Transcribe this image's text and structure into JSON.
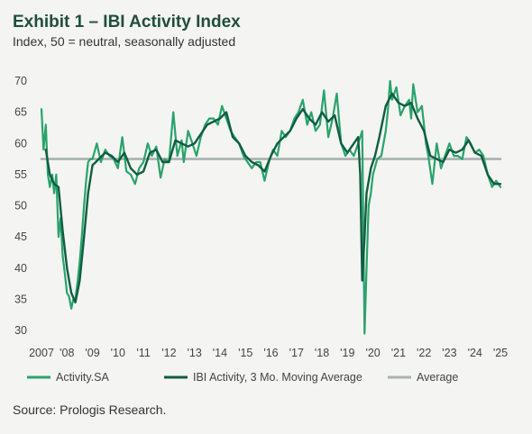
{
  "header": {
    "title": "Exhibit 1 – IBI Activity Index",
    "subtitle": "Index, 50 = neutral, seasonally adjusted"
  },
  "footer": {
    "source": "Source: Prologis Research."
  },
  "colors": {
    "activity": "#2aa36b",
    "moving_average": "#0f5d43",
    "average": "#a9b1b1"
  },
  "chart_data": {
    "type": "line",
    "title": "Exhibit 1 – IBI Activity Index",
    "subtitle": "Index, 50 = neutral, seasonally adjusted",
    "xlim": [
      2007.0,
      2025.0
    ],
    "ylim": [
      30,
      70
    ],
    "y_ticks": [
      30,
      35,
      40,
      45,
      50,
      55,
      60,
      65,
      70
    ],
    "x_tick_values": [
      2007,
      2008,
      2009,
      2010,
      2011,
      2012,
      2013,
      2014,
      2015,
      2016,
      2017,
      2018,
      2019,
      2020,
      2021,
      2022,
      2023,
      2024,
      2025
    ],
    "x_tick_labels": [
      "2007",
      "'08",
      "'09",
      "'10",
      "'11",
      "'12",
      "'13",
      "'14",
      "'15",
      "'16",
      "'17",
      "'18",
      "'19",
      "'20",
      "'21",
      "'22",
      "'23",
      "'24",
      "'25"
    ],
    "grid": false,
    "legend": {
      "position": "bottom",
      "entries": [
        "Activity.SA",
        "IBI Activity, 3 Mo. Moving Average",
        "Average"
      ]
    },
    "series": [
      {
        "name": "Activity.SA",
        "x": [
          2007.0,
          2007.08,
          2007.17,
          2007.25,
          2007.33,
          2007.42,
          2007.5,
          2007.58,
          2007.67,
          2007.75,
          2007.83,
          2007.92,
          2008.0,
          2008.08,
          2008.17,
          2008.25,
          2008.33,
          2008.42,
          2008.5,
          2008.58,
          2008.67,
          2008.75,
          2008.83,
          2008.92,
          2009.0,
          2009.17,
          2009.33,
          2009.5,
          2009.67,
          2009.83,
          2010.0,
          2010.17,
          2010.33,
          2010.5,
          2010.67,
          2010.83,
          2011.0,
          2011.17,
          2011.33,
          2011.5,
          2011.67,
          2011.83,
          2012.0,
          2012.17,
          2012.33,
          2012.5,
          2012.58,
          2012.75,
          2012.92,
          2013.08,
          2013.25,
          2013.42,
          2013.58,
          2013.75,
          2013.92,
          2014.08,
          2014.25,
          2014.42,
          2014.58,
          2014.75,
          2014.92,
          2015.08,
          2015.25,
          2015.42,
          2015.58,
          2015.75,
          2015.92,
          2016.08,
          2016.25,
          2016.42,
          2016.58,
          2016.75,
          2016.92,
          2017.08,
          2017.25,
          2017.42,
          2017.58,
          2017.75,
          2017.92,
          2018.08,
          2018.25,
          2018.42,
          2018.58,
          2018.75,
          2018.92,
          2019.08,
          2019.25,
          2019.42,
          2019.5,
          2019.58,
          2019.67,
          2019.75,
          2019.83,
          2019.92,
          2020.0,
          2020.17,
          2020.33,
          2020.5,
          2020.58,
          2020.67,
          2020.75,
          2020.92,
          2021.08,
          2021.25,
          2021.42,
          2021.5,
          2021.58,
          2021.75,
          2021.92,
          2022.08,
          2022.17,
          2022.33,
          2022.5,
          2022.67,
          2022.83,
          2023.0,
          2023.17,
          2023.33,
          2023.5,
          2023.67,
          2023.83,
          2024.0,
          2024.17,
          2024.33,
          2024.5,
          2024.67,
          2024.83,
          2025.0
        ],
        "y": [
          65.5,
          59,
          63,
          55,
          53,
          55,
          52,
          55,
          45,
          48,
          42,
          39,
          36,
          35.5,
          33.5,
          35,
          35,
          38,
          41,
          45,
          50,
          54,
          57,
          57.5,
          57.5,
          60,
          57,
          59,
          58,
          57.5,
          56,
          61,
          55.5,
          55,
          53.5,
          56,
          57,
          60,
          58,
          59.5,
          54.5,
          57.5,
          57,
          65,
          58,
          60.5,
          57,
          62,
          60,
          58,
          61,
          63,
          64,
          64,
          63,
          66,
          64,
          62,
          61,
          60,
          58,
          57,
          56,
          57,
          57,
          54,
          57,
          59,
          58,
          62,
          61,
          62,
          64,
          65,
          67,
          63,
          65,
          62,
          63,
          68.5,
          61,
          64,
          68,
          60,
          58,
          59,
          58,
          60,
          61,
          62,
          29.5,
          40,
          50,
          52,
          55,
          57.5,
          58,
          62,
          65,
          70,
          67,
          69,
          64.5,
          66,
          67,
          64,
          69.5,
          65,
          66,
          60,
          58,
          53.5,
          60,
          56,
          58,
          60,
          58,
          58,
          57.5,
          61,
          60,
          58.5,
          59,
          58,
          55,
          53,
          54,
          53
        ],
        "color": "#2aa36b"
      },
      {
        "name": "IBI Activity, 3 Mo. Moving Average",
        "x": [
          2007.17,
          2007.33,
          2007.5,
          2007.67,
          2007.83,
          2008.0,
          2008.17,
          2008.33,
          2008.5,
          2008.67,
          2008.83,
          2009.0,
          2009.25,
          2009.5,
          2009.75,
          2010.0,
          2010.25,
          2010.5,
          2010.75,
          2011.0,
          2011.25,
          2011.5,
          2011.75,
          2012.0,
          2012.25,
          2012.5,
          2012.75,
          2013.0,
          2013.25,
          2013.5,
          2013.75,
          2014.0,
          2014.25,
          2014.5,
          2014.75,
          2015.0,
          2015.25,
          2015.5,
          2015.75,
          2016.0,
          2016.25,
          2016.5,
          2016.75,
          2017.0,
          2017.25,
          2017.5,
          2017.75,
          2018.0,
          2018.25,
          2018.5,
          2018.75,
          2019.0,
          2019.25,
          2019.42,
          2019.5,
          2019.58,
          2019.67,
          2019.75,
          2019.92,
          2020.08,
          2020.25,
          2020.5,
          2020.75,
          2021.0,
          2021.25,
          2021.5,
          2021.75,
          2022.0,
          2022.25,
          2022.5,
          2022.75,
          2023.0,
          2023.25,
          2023.5,
          2023.75,
          2024.0,
          2024.25,
          2024.5,
          2024.75,
          2025.0
        ],
        "y": [
          59,
          55,
          53.5,
          53,
          46,
          40,
          36,
          34.5,
          38,
          45,
          52,
          56.5,
          57.5,
          58.5,
          58,
          57,
          58.5,
          56,
          55,
          55.5,
          58.5,
          59,
          57,
          57,
          60.5,
          60,
          59.5,
          60,
          61.5,
          63,
          63.5,
          64,
          65,
          61,
          60,
          58,
          57,
          56.5,
          55.5,
          58,
          60,
          61,
          62,
          64,
          65.5,
          64,
          63,
          65,
          63.5,
          64.5,
          60,
          58.5,
          60,
          61,
          55,
          38,
          45,
          52,
          56,
          58,
          61,
          66,
          68,
          66.5,
          66,
          66.5,
          64,
          62,
          58,
          57.5,
          57,
          59,
          58.5,
          59,
          60.5,
          58.5,
          58,
          55,
          53.5,
          53.5
        ],
        "color": "#0f5d43"
      },
      {
        "name": "Average",
        "x": [
          2007.0,
          2025.0
        ],
        "y": [
          57.5,
          57.5
        ],
        "color": "#a9b1b1"
      }
    ]
  }
}
